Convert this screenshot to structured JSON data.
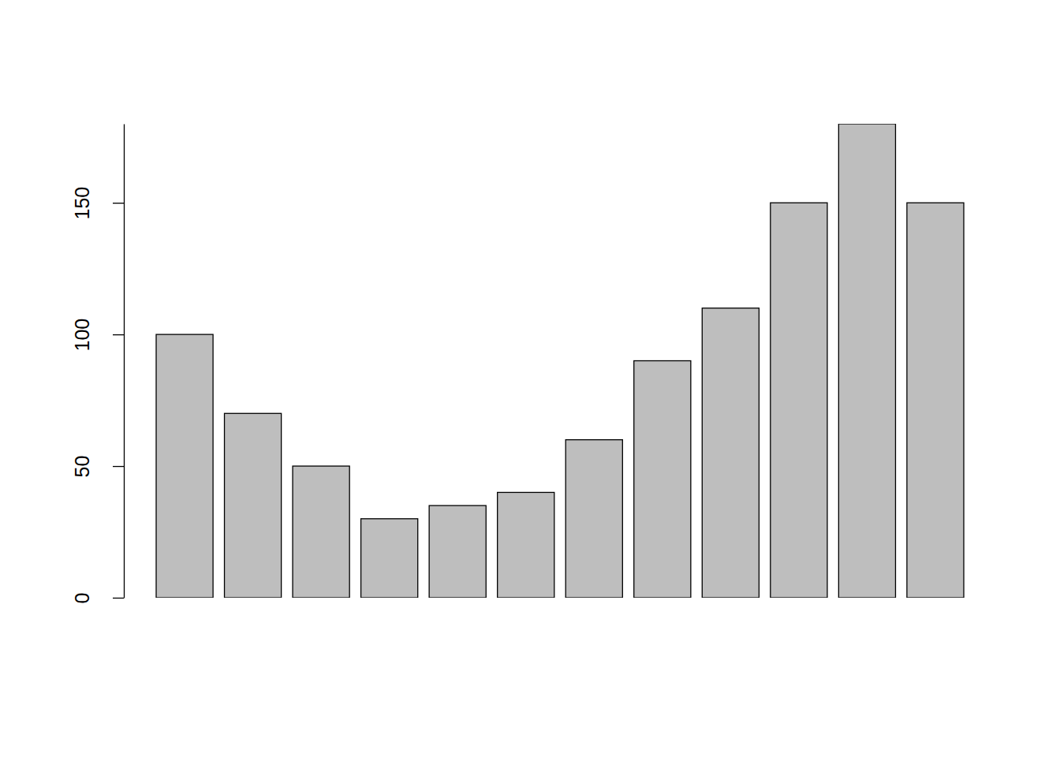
{
  "chart_data": {
    "type": "bar",
    "categories": [
      null,
      null,
      null,
      null,
      null,
      null,
      null,
      null,
      null,
      null,
      null,
      null
    ],
    "values": [
      100,
      70,
      50,
      30,
      35,
      40,
      60,
      90,
      110,
      150,
      180,
      150
    ],
    "color": "#bebebe",
    "ylim": [
      0,
      180
    ],
    "yticks": [
      0,
      50,
      100,
      150
    ],
    "grid": false
  }
}
